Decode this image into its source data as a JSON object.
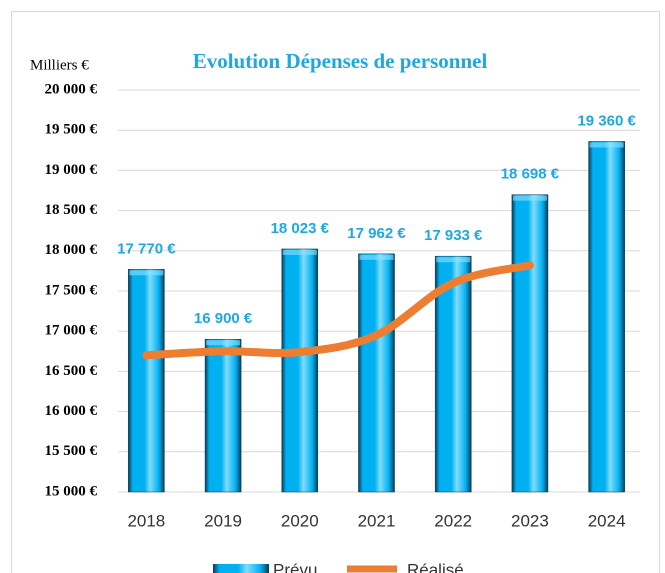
{
  "chart_data": {
    "type": "bar",
    "title": "Evolution Dépenses de personnel",
    "y_label": "Milliers €",
    "categories": [
      "2018",
      "2019",
      "2020",
      "2021",
      "2022",
      "2023",
      "2024"
    ],
    "series": [
      {
        "name": "Prévu",
        "type": "bar",
        "color": "#00b0f0",
        "values": [
          17770,
          16900,
          18023,
          17962,
          17933,
          18698,
          19360
        ],
        "value_labels": [
          "17 770 €",
          "16 900 €",
          "18 023 €",
          "17 962 €",
          "17 933 €",
          "18 698 €",
          "19 360 €"
        ]
      },
      {
        "name": "Réalisé",
        "type": "line",
        "color": "#ed7d31",
        "values": [
          16700,
          16750,
          16740,
          16950,
          17600,
          17820,
          null
        ]
      }
    ],
    "ylim": [
      15000,
      20000
    ],
    "yticks": [
      {
        "value": 15000,
        "label": "15 000 €"
      },
      {
        "value": 15500,
        "label": "15 500 €"
      },
      {
        "value": 16000,
        "label": "16 000 €"
      },
      {
        "value": 16500,
        "label": "16 500 €"
      },
      {
        "value": 17000,
        "label": "17 000 €"
      },
      {
        "value": 17500,
        "label": "17 500 €"
      },
      {
        "value": 18000,
        "label": "18 000 €"
      },
      {
        "value": 18500,
        "label": "18 500 €"
      },
      {
        "value": 19000,
        "label": "19 000 €"
      },
      {
        "value": 19500,
        "label": "19 500 €"
      },
      {
        "value": 20000,
        "label": "20 000 €"
      }
    ],
    "grid": true,
    "legend": "bottom"
  }
}
